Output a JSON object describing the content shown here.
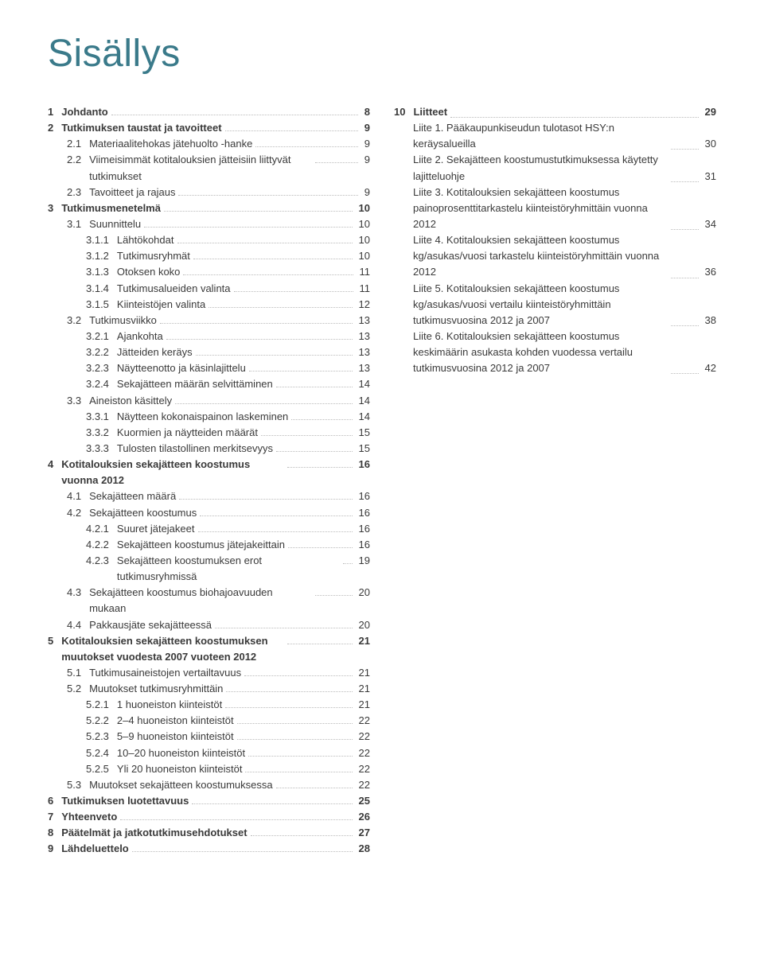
{
  "title": "Sisällys",
  "colors": {
    "title": "#3a7a8a",
    "text": "#3a3a3a",
    "leader": "#bbbbbb",
    "background": "#ffffff"
  },
  "typography": {
    "title_fontsize": 48,
    "body_fontsize": 13,
    "title_weight": 300
  },
  "left": [
    {
      "lvl": 0,
      "num": "1",
      "label": "Johdanto",
      "page": "8",
      "bold": true
    },
    {
      "lvl": 0,
      "num": "2",
      "label": "Tutkimuksen taustat ja tavoitteet",
      "page": "9",
      "bold": true
    },
    {
      "lvl": 1,
      "num": "2.1",
      "label": "Materiaalitehokas jätehuolto -hanke",
      "page": "9"
    },
    {
      "lvl": 1,
      "num": "2.2",
      "label": "Viimeisimmät kotitalouksien jätteisiin liittyvät tutkimukset",
      "page": "9",
      "wrap": true
    },
    {
      "lvl": 1,
      "num": "2.3",
      "label": "Tavoitteet ja rajaus",
      "page": "9"
    },
    {
      "lvl": 0,
      "num": "3",
      "label": "Tutkimusmenetelmä",
      "page": "10",
      "bold": true
    },
    {
      "lvl": 1,
      "num": "3.1",
      "label": "Suunnittelu",
      "page": "10"
    },
    {
      "lvl": 2,
      "num": "3.1.1",
      "label": "Lähtökohdat",
      "page": "10"
    },
    {
      "lvl": 2,
      "num": "3.1.2",
      "label": "Tutkimusryhmät",
      "page": "10"
    },
    {
      "lvl": 2,
      "num": "3.1.3",
      "label": "Otoksen koko",
      "page": "11"
    },
    {
      "lvl": 2,
      "num": "3.1.4",
      "label": "Tutkimusalueiden valinta",
      "page": "11"
    },
    {
      "lvl": 2,
      "num": "3.1.5",
      "label": "Kiinteistöjen valinta",
      "page": "12"
    },
    {
      "lvl": 1,
      "num": "3.2",
      "label": "Tutkimusviikko",
      "page": "13"
    },
    {
      "lvl": 2,
      "num": "3.2.1",
      "label": "Ajankohta",
      "page": "13"
    },
    {
      "lvl": 2,
      "num": "3.2.2",
      "label": "Jätteiden keräys",
      "page": "13"
    },
    {
      "lvl": 2,
      "num": "3.2.3",
      "label": "Näytteenotto ja käsinlajittelu",
      "page": "13"
    },
    {
      "lvl": 2,
      "num": "3.2.4",
      "label": "Sekajätteen määrän selvittäminen",
      "page": "14"
    },
    {
      "lvl": 1,
      "num": "3.3",
      "label": "Aineiston käsittely",
      "page": "14"
    },
    {
      "lvl": 2,
      "num": "3.3.1",
      "label": "Näytteen kokonaispainon laskeminen",
      "page": "14"
    },
    {
      "lvl": 2,
      "num": "3.3.2",
      "label": "Kuormien ja näytteiden määrät",
      "page": "15"
    },
    {
      "lvl": 2,
      "num": "3.3.3",
      "label": "Tulosten tilastollinen merkitsevyys",
      "page": "15"
    },
    {
      "lvl": 0,
      "num": "4",
      "label": "Kotitalouksien sekajätteen koostumus vuonna 2012",
      "page": "16",
      "bold": true,
      "wrap": true
    },
    {
      "lvl": 1,
      "num": "4.1",
      "label": "Sekajätteen määrä",
      "page": "16"
    },
    {
      "lvl": 1,
      "num": "4.2",
      "label": "Sekajätteen koostumus",
      "page": "16"
    },
    {
      "lvl": 2,
      "num": "4.2.1",
      "label": "Suuret jätejakeet",
      "page": "16"
    },
    {
      "lvl": 2,
      "num": "4.2.2",
      "label": "Sekajätteen koostumus jätejakeittain",
      "page": "16"
    },
    {
      "lvl": 2,
      "num": "4.2.3",
      "label": "Sekajätteen koostumuksen erot tutkimusryhmissä",
      "page": "19",
      "wrap": true
    },
    {
      "lvl": 1,
      "num": "4.3",
      "label": "Sekajätteen koostumus biohajoavuuden mukaan",
      "page": "20",
      "wrap": true
    },
    {
      "lvl": 1,
      "num": "4.4",
      "label": "Pakkausjäte sekajätteessä",
      "page": "20"
    },
    {
      "lvl": 0,
      "num": "5",
      "label": "Kotitalouksien sekajätteen koostumuksen muutokset vuodesta 2007 vuoteen 2012",
      "page": "21",
      "bold": true,
      "wrap": true
    },
    {
      "lvl": 1,
      "num": "5.1",
      "label": "Tutkimusaineistojen vertailtavuus",
      "page": "21"
    },
    {
      "lvl": 1,
      "num": "5.2",
      "label": "Muutokset tutkimusryhmittäin",
      "page": "21"
    },
    {
      "lvl": 2,
      "num": "5.2.1",
      "label": "1 huoneiston kiinteistöt",
      "page": "21"
    },
    {
      "lvl": 2,
      "num": "5.2.2",
      "label": "2–4 huoneiston kiinteistöt",
      "page": "22"
    },
    {
      "lvl": 2,
      "num": "5.2.3",
      "label": "5–9 huoneiston kiinteistöt",
      "page": "22"
    },
    {
      "lvl": 2,
      "num": "5.2.4",
      "label": "10–20 huoneiston kiinteistöt",
      "page": "22"
    },
    {
      "lvl": 2,
      "num": "5.2.5",
      "label": "Yli 20 huoneiston kiinteistöt",
      "page": "22"
    },
    {
      "lvl": 1,
      "num": "5.3",
      "label": "Muutokset sekajätteen koostumuksessa",
      "page": "22"
    },
    {
      "lvl": 0,
      "num": "6",
      "label": "Tutkimuksen luotettavuus",
      "page": "25",
      "bold": true
    },
    {
      "lvl": 0,
      "num": "7",
      "label": "Yhteenveto",
      "page": "26",
      "bold": true
    },
    {
      "lvl": 0,
      "num": "8",
      "label": "Päätelmät ja jatkotutkimusehdotukset",
      "page": "27",
      "bold": true
    },
    {
      "lvl": 0,
      "num": "9",
      "label": "Lähdeluettelo",
      "page": "28",
      "bold": true
    }
  ],
  "right": [
    {
      "lvl": 0,
      "num": "10",
      "label": "Liitteet",
      "page": "29",
      "bold": true
    },
    {
      "lvl": 1,
      "num": "",
      "label": "Liite 1. Pääkaupunkiseudun tulotasot HSY:n keräysalueilla",
      "page": "30"
    },
    {
      "lvl": 1,
      "num": "",
      "label": "Liite 2. Sekajätteen koostumustutkimuksessa käytetty lajitteluohje",
      "page": "31"
    },
    {
      "lvl": 1,
      "num": "",
      "label": "Liite 3. Kotitalouksien sekajätteen koostumus painoprosenttitarkastelu kiinteistöryhmittäin vuonna 2012",
      "page": "34"
    },
    {
      "lvl": 1,
      "num": "",
      "label": "Liite 4. Kotitalouksien sekajätteen koostumus kg/asukas/vuosi tarkastelu kiinteistöryhmittäin vuonna 2012",
      "page": "36"
    },
    {
      "lvl": 1,
      "num": "",
      "label": "Liite 5. Kotitalouksien sekajätteen koostumus kg/asukas/vuosi vertailu kiinteistöryhmittäin tutkimusvuosina 2012 ja 2007",
      "page": "38"
    },
    {
      "lvl": 1,
      "num": "",
      "label": "Liite 6. Kotitalouksien sekajätteen koostumus keskimäärin asukasta kohden vuodessa vertailu tutkimusvuosina 2012 ja 2007",
      "page": "42"
    }
  ]
}
